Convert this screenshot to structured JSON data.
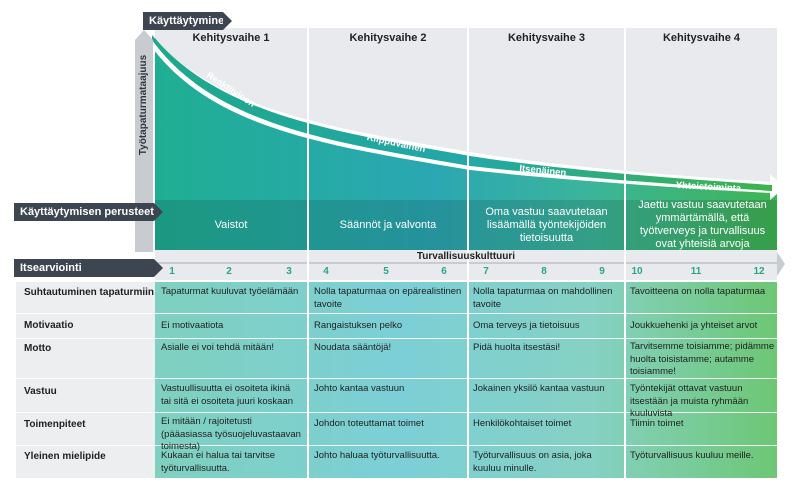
{
  "header_tag": "Käyttäytyminen",
  "y_axis_label": "Työtapaturmataajuus",
  "basics_tag": "Käyttäytymisen perusteet",
  "self_eval_tag": "Itsearviointi",
  "scale_title": "Turvallisuuskulttuuri",
  "phases": [
    "Kehitysvaihe 1",
    "Kehitysvaihe 2",
    "Kehitysvaihe 3",
    "Kehitysvaihe 4"
  ],
  "stages": [
    "Reaktiivinen",
    "Riippuvainen",
    "Itsenäinen",
    "Yhteistoiminta"
  ],
  "basics": [
    "Vaistot",
    "Säännöt ja valvonta",
    "Oma vastuu saavutetaan lisäämällä työntekijöiden tietoisuutta",
    "Jaettu vastuu saavutetaan ymmärtämällä, että työtverveys ja  turvallisuus ovat yhteisiä arvoja"
  ],
  "scale_numbers": [
    "1",
    "2",
    "3",
    "4",
    "5",
    "6",
    "7",
    "8",
    "9",
    "10",
    "11",
    "12"
  ],
  "rows": [
    {
      "label": "Suhtautuminen tapaturmiin",
      "cells": [
        "Tapaturmat kuuluvat työelämään",
        "Nolla tapaturmaa on epärealistinen tavoite",
        "Nolla tapaturmaa on mahdollinen tavoite",
        "Tavoitteena on nolla tapaturmaa"
      ]
    },
    {
      "label": "Motivaatio",
      "cells": [
        "Ei motivaatiota",
        "Rangaistuksen pelko",
        "Oma terveys ja tietoisuus",
        "Joukkuehenki ja yhteiset arvot"
      ]
    },
    {
      "label": "Motto",
      "cells": [
        "Asialle ei voi tehdä mitään!",
        "Noudata sääntöjä!",
        "Pidä huolta itsestäsi!",
        "Tarvitsemme toisiamme; pidämme huolta toisistamme; autamme toisiamme!"
      ]
    },
    {
      "label": "Vastuu",
      "cells": [
        "Vastuullisuutta ei osoiteta ikinä tai sitä ei osoiteta juuri koskaan",
        "Johto kantaa vastuun",
        "Jokainen yksilö kantaa vastuun",
        "Työntekijät ottavat vastuun itsestään ja muista ryhmään kuuluvista"
      ]
    },
    {
      "label": "Toimenpiteet",
      "cells": [
        "Ei mitään / rajoitetusti (pääasiassa työsuojeluvastaavan toimesta)",
        "Johdon toteuttamat toimet",
        "Henkilökohtaiset toimet",
        "Tiimin toimet"
      ]
    },
    {
      "label": "Yleinen mielipide",
      "cells": [
        "Kukaan ei halua tai tarvitse työturvallisuutta.",
        "Johto haluaa työturvallisuutta.",
        "Työturvallisuus on asia, joka kuuluu minulle.",
        "Työturvallisuus kuuluu meille."
      ]
    }
  ]
}
